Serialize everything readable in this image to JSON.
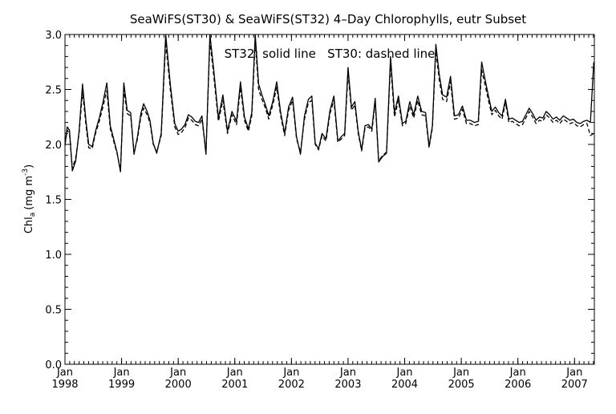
{
  "chart_data": {
    "type": "line",
    "title": "SeaWiFS(ST30) & SeaWiFS(ST32) 4–Day Chlorophylls, eutr Subset",
    "annotation": "ST32: solid line   ST30: dashed line",
    "ylabel_main": "Chl",
    "ylabel_sub": "a",
    "ylabel_unit": "(mg m",
    "ylabel_sup": "-3",
    "ylabel_close": ")",
    "ylim": [
      0.0,
      3.0
    ],
    "yticks": [
      "0.0",
      "0.5",
      "1.0",
      "1.5",
      "2.0",
      "2.5",
      "3.0"
    ],
    "xlim": [
      1998.0,
      2007.35
    ],
    "xticks": [
      {
        "month": "Jan",
        "year": "1998"
      },
      {
        "month": "Jan",
        "year": "1999"
      },
      {
        "month": "Jan",
        "year": "2000"
      },
      {
        "month": "Jan",
        "year": "2001"
      },
      {
        "month": "Jan",
        "year": "2002"
      },
      {
        "month": "Jan",
        "year": "2003"
      },
      {
        "month": "Jan",
        "year": "2004"
      },
      {
        "month": "Jan",
        "year": "2005"
      },
      {
        "month": "Jan",
        "year": "2006"
      },
      {
        "month": "Jan",
        "year": "2007"
      }
    ],
    "grid": false,
    "series": [
      {
        "name": "ST32",
        "style": "solid",
        "color": "#000000",
        "x": [
          1998.0,
          1998.04,
          1998.08,
          1998.13,
          1998.19,
          1998.25,
          1998.31,
          1998.37,
          1998.42,
          1998.48,
          1998.54,
          1998.61,
          1998.67,
          1998.74,
          1998.8,
          1998.86,
          1998.92,
          1998.98,
          1999.04,
          1999.1,
          1999.16,
          1999.22,
          1999.28,
          1999.34,
          1999.39,
          1999.45,
          1999.5,
          1999.56,
          1999.62,
          1999.7,
          1999.78,
          1999.86,
          1999.94,
          2000.0,
          2000.06,
          2000.12,
          2000.18,
          2000.24,
          2000.3,
          2000.36,
          2000.42,
          2000.49,
          2000.56,
          2000.63,
          2000.71,
          2000.79,
          2000.87,
          2000.95,
          2001.03,
          2001.1,
          2001.17,
          2001.24,
          2001.3,
          2001.36,
          2001.42,
          2001.48,
          2001.54,
          2001.6,
          2001.67,
          2001.74,
          2001.81,
          2001.88,
          2001.95,
          2002.02,
          2002.09,
          2002.16,
          2002.23,
          2002.3,
          2002.36,
          2002.42,
          2002.48,
          2002.54,
          2002.61,
          2002.68,
          2002.75,
          2002.82,
          2002.88,
          2002.94,
          2003.0,
          2003.06,
          2003.12,
          2003.18,
          2003.24,
          2003.3,
          2003.36,
          2003.42,
          2003.48,
          2003.54,
          2003.61,
          2003.68,
          2003.75,
          2003.82,
          2003.89,
          2003.96,
          2004.02,
          2004.09,
          2004.16,
          2004.23,
          2004.3,
          2004.37,
          2004.43,
          2004.49,
          2004.55,
          2004.61,
          2004.67,
          2004.74,
          2004.81,
          2004.88,
          2004.95,
          2005.02,
          2005.09,
          2005.16,
          2005.23,
          2005.3,
          2005.36,
          2005.42,
          2005.48,
          2005.54,
          2005.6,
          2005.66,
          2005.72,
          2005.78,
          2005.84,
          2005.9,
          2005.96,
          2006.02,
          2006.08,
          2006.14,
          2006.2,
          2006.26,
          2006.32,
          2006.38,
          2006.44,
          2006.5,
          2006.56,
          2006.62,
          2006.68,
          2006.74,
          2006.8,
          2006.86,
          2006.92,
          2006.98,
          2007.04,
          2007.1,
          2007.16,
          2007.22,
          2007.28,
          2007.34
        ],
        "y": [
          1.99,
          2.16,
          2.13,
          1.76,
          1.85,
          2.12,
          2.55,
          2.22,
          2.0,
          1.98,
          2.12,
          2.25,
          2.38,
          2.56,
          2.17,
          2.05,
          1.93,
          1.75,
          2.56,
          2.31,
          2.29,
          1.91,
          2.07,
          2.28,
          2.37,
          2.3,
          2.22,
          2.01,
          1.92,
          2.1,
          3.0,
          2.55,
          2.19,
          2.12,
          2.14,
          2.18,
          2.27,
          2.25,
          2.21,
          2.2,
          2.26,
          1.91,
          3.0,
          2.67,
          2.24,
          2.45,
          2.12,
          2.3,
          2.21,
          2.57,
          2.25,
          2.14,
          2.29,
          3.0,
          2.55,
          2.45,
          2.36,
          2.26,
          2.39,
          2.57,
          2.29,
          2.1,
          2.34,
          2.43,
          2.07,
          1.91,
          2.26,
          2.41,
          2.44,
          2.01,
          1.96,
          2.1,
          2.05,
          2.31,
          2.44,
          2.03,
          2.07,
          2.1,
          2.7,
          2.34,
          2.39,
          2.12,
          1.95,
          2.17,
          2.18,
          2.14,
          2.42,
          1.84,
          1.89,
          1.92,
          2.8,
          2.29,
          2.44,
          2.19,
          2.21,
          2.39,
          2.27,
          2.44,
          2.3,
          2.29,
          1.98,
          2.17,
          2.91,
          2.64,
          2.45,
          2.43,
          2.62,
          2.26,
          2.27,
          2.35,
          2.22,
          2.22,
          2.2,
          2.21,
          2.75,
          2.59,
          2.44,
          2.3,
          2.34,
          2.29,
          2.26,
          2.41,
          2.23,
          2.24,
          2.22,
          2.2,
          2.21,
          2.27,
          2.33,
          2.28,
          2.22,
          2.25,
          2.24,
          2.3,
          2.27,
          2.23,
          2.25,
          2.22,
          2.26,
          2.24,
          2.22,
          2.23,
          2.2,
          2.19,
          2.21,
          2.22,
          2.2,
          2.75
        ]
      },
      {
        "name": "ST30",
        "style": "dashed",
        "color": "#000000",
        "x": [
          1998.0,
          1998.04,
          1998.08,
          1998.13,
          1998.19,
          1998.25,
          1998.31,
          1998.37,
          1998.42,
          1998.48,
          1998.54,
          1998.61,
          1998.67,
          1998.74,
          1998.8,
          1998.86,
          1998.92,
          1998.98,
          1999.04,
          1999.1,
          1999.16,
          1999.22,
          1999.28,
          1999.34,
          1999.39,
          1999.45,
          1999.5,
          1999.56,
          1999.62,
          1999.7,
          1999.78,
          1999.86,
          1999.94,
          2000.0,
          2000.06,
          2000.12,
          2000.18,
          2000.24,
          2000.3,
          2000.36,
          2000.42,
          2000.49,
          2000.56,
          2000.63,
          2000.71,
          2000.79,
          2000.87,
          2000.95,
          2001.03,
          2001.1,
          2001.17,
          2001.24,
          2001.3,
          2001.36,
          2001.42,
          2001.48,
          2001.54,
          2001.6,
          2001.67,
          2001.74,
          2001.81,
          2001.88,
          2001.95,
          2002.02,
          2002.09,
          2002.16,
          2002.23,
          2002.3,
          2002.36,
          2002.42,
          2002.48,
          2002.54,
          2002.61,
          2002.68,
          2002.75,
          2002.82,
          2002.88,
          2002.94,
          2003.0,
          2003.06,
          2003.12,
          2003.18,
          2003.24,
          2003.3,
          2003.36,
          2003.42,
          2003.48,
          2003.54,
          2003.61,
          2003.68,
          2003.75,
          2003.82,
          2003.89,
          2003.96,
          2004.02,
          2004.09,
          2004.16,
          2004.23,
          2004.3,
          2004.37,
          2004.43,
          2004.49,
          2004.55,
          2004.61,
          2004.67,
          2004.74,
          2004.81,
          2004.88,
          2004.95,
          2005.02,
          2005.09,
          2005.16,
          2005.23,
          2005.3,
          2005.36,
          2005.42,
          2005.48,
          2005.54,
          2005.6,
          2005.66,
          2005.72,
          2005.78,
          2005.84,
          2005.9,
          2005.96,
          2006.02,
          2006.08,
          2006.14,
          2006.2,
          2006.26,
          2006.32,
          2006.38,
          2006.44,
          2006.5,
          2006.56,
          2006.62,
          2006.68,
          2006.74,
          2006.8,
          2006.86,
          2006.92,
          2006.98,
          2007.04,
          2007.1,
          2007.16,
          2007.22,
          2007.28,
          2007.34
        ],
        "y": [
          2.0,
          2.13,
          2.1,
          1.78,
          1.88,
          2.1,
          2.48,
          2.18,
          1.97,
          1.96,
          2.1,
          2.22,
          2.34,
          2.49,
          2.14,
          2.03,
          1.92,
          1.77,
          2.5,
          2.28,
          2.26,
          1.93,
          2.05,
          2.25,
          2.33,
          2.27,
          2.2,
          2.0,
          1.93,
          2.08,
          2.93,
          2.5,
          2.16,
          2.09,
          2.11,
          2.15,
          2.24,
          2.22,
          2.18,
          2.17,
          2.23,
          1.93,
          2.94,
          2.62,
          2.21,
          2.4,
          2.1,
          2.27,
          2.18,
          2.52,
          2.22,
          2.12,
          2.26,
          2.94,
          2.5,
          2.41,
          2.33,
          2.23,
          2.36,
          2.52,
          2.26,
          2.08,
          2.31,
          2.4,
          2.05,
          1.93,
          2.23,
          2.38,
          2.4,
          2.0,
          1.95,
          2.08,
          2.03,
          2.28,
          2.4,
          2.02,
          2.05,
          2.08,
          2.65,
          2.31,
          2.36,
          2.1,
          1.94,
          2.15,
          2.16,
          2.12,
          2.38,
          1.85,
          1.9,
          1.93,
          2.74,
          2.25,
          2.4,
          2.17,
          2.19,
          2.35,
          2.24,
          2.4,
          2.27,
          2.26,
          1.97,
          2.15,
          2.85,
          2.59,
          2.41,
          2.39,
          2.57,
          2.23,
          2.24,
          2.32,
          2.19,
          2.19,
          2.17,
          2.18,
          2.68,
          2.54,
          2.4,
          2.27,
          2.31,
          2.26,
          2.23,
          2.38,
          2.2,
          2.21,
          2.19,
          2.17,
          2.18,
          2.24,
          2.3,
          2.25,
          2.19,
          2.22,
          2.21,
          2.27,
          2.24,
          2.2,
          2.22,
          2.19,
          2.23,
          2.21,
          2.19,
          2.2,
          2.17,
          2.16,
          2.18,
          2.19,
          2.08,
          2.1
        ]
      }
    ]
  }
}
